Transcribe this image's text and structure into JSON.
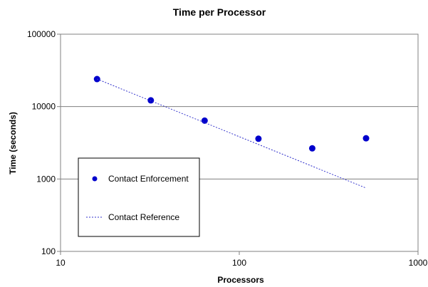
{
  "chart_data": {
    "type": "scatter",
    "title": "Time per Processor",
    "xlabel": "Processors",
    "ylabel": "Time (seconds)",
    "xscale": "log",
    "yscale": "log",
    "xlim": [
      10,
      1000
    ],
    "ylim": [
      100,
      100000
    ],
    "x_ticks": [
      "10",
      "100",
      "1000"
    ],
    "y_ticks": [
      "100",
      "1000",
      "10000",
      "100000"
    ],
    "grid": "horizontal major lines",
    "legend_position": "lower-left inside plot",
    "series": [
      {
        "name": "Contact Enforcement",
        "style": "markers",
        "color": "#0000cc",
        "x": [
          16,
          32,
          64,
          128,
          256,
          512
        ],
        "y": [
          24000,
          12200,
          6400,
          3600,
          2650,
          3650
        ]
      },
      {
        "name": "Contact Reference",
        "style": "dotted-line",
        "color": "#3333cc",
        "x": [
          16,
          512
        ],
        "y": [
          24000,
          750
        ]
      }
    ]
  }
}
